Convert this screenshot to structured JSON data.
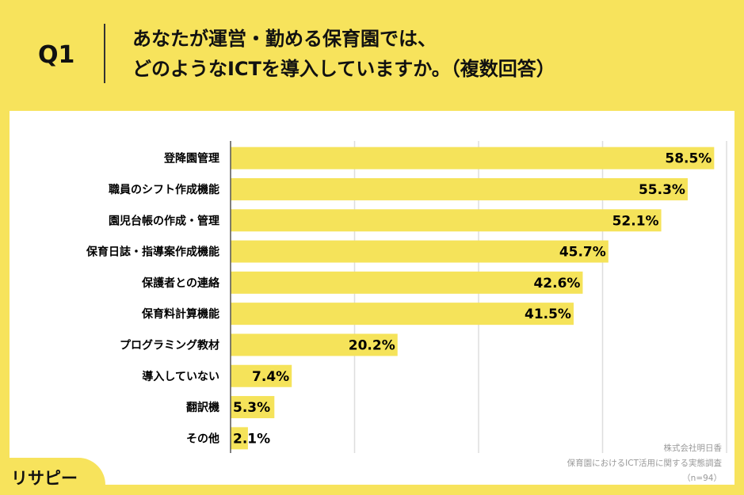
{
  "header": {
    "question": "Q1",
    "title_line1": "あなたが運営・勤める保育園では、",
    "title_line2": "どのようなICTを導入していますか。（複数回答）"
  },
  "source": {
    "company": "株式会社明日香",
    "survey": "保育園におけるICT活用に関する実態調査",
    "n": "（n=94）"
  },
  "logo": {
    "text": "リサピー",
    "icon": "magnifier-pin-icon"
  },
  "colors": {
    "bar": "#f5e35a",
    "background": "#f7e35c",
    "grid": "#dddddd"
  },
  "chart_data": {
    "type": "bar",
    "orientation": "horizontal",
    "categories": [
      "登降園管理",
      "職員のシフト作成機能",
      "園児台帳の作成・管理",
      "保育日誌・指導案作成機能",
      "保護者との連絡",
      "保育料計算機能",
      "プログラミング教材",
      "導入していない",
      "翻訳機",
      "その他"
    ],
    "values": [
      58.5,
      55.3,
      52.1,
      45.7,
      42.6,
      41.5,
      20.2,
      7.4,
      5.3,
      2.1
    ],
    "labels": [
      "58.5%",
      "55.3%",
      "52.1%",
      "45.7%",
      "42.6%",
      "41.5%",
      "20.2%",
      "7.4%",
      "5.3%",
      "2.1%"
    ],
    "xlim": [
      0,
      60
    ],
    "grid_step": 15,
    "grid": true,
    "unit": "%"
  }
}
